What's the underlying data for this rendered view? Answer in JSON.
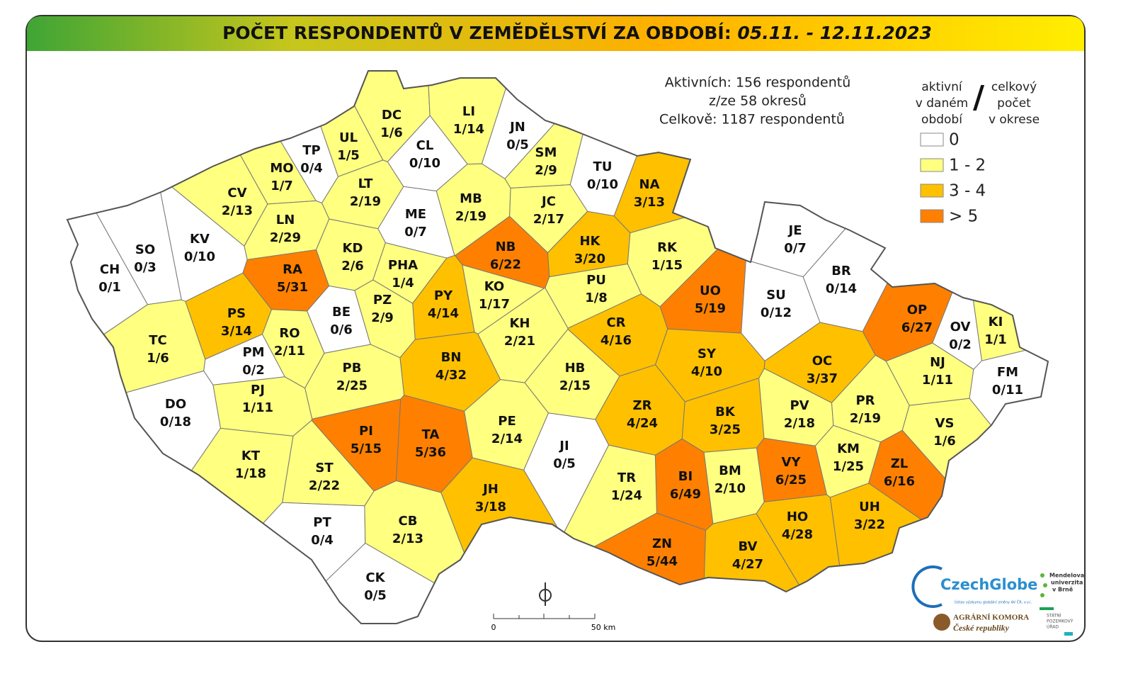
{
  "header": {
    "title": "POČET RESPONDENTŮ V ZEMĚDĚLSTVÍ ZA OBDOBÍ:",
    "period": "05.11. - 12.11.2023"
  },
  "summary": [
    "Aktivních: 156 respondentů",
    "z/ze 58 okresů",
    "Celkově: 1187 respondentů"
  ],
  "legend": {
    "active_label": [
      "aktivní",
      "v daném",
      "období"
    ],
    "separator": "/",
    "total_label": [
      "celkový",
      "počet",
      "v okrese"
    ],
    "items": [
      {
        "label": "0",
        "color": "#ffffff"
      },
      {
        "label": "1 - 2",
        "color": "#ffff80"
      },
      {
        "label": "3 - 4",
        "color": "#ffc000"
      },
      {
        "label": "> 5",
        "color": "#ff8000"
      }
    ]
  },
  "districts": [
    {
      "code": "CH",
      "ratio": "0/1",
      "color": "#ffffff"
    },
    {
      "code": "SO",
      "ratio": "0/3",
      "color": "#ffffff"
    },
    {
      "code": "KV",
      "ratio": "0/10",
      "color": "#ffffff"
    },
    {
      "code": "CV",
      "ratio": "2/13",
      "color": "#ffff80"
    },
    {
      "code": "MO",
      "ratio": "1/7",
      "color": "#ffff80"
    },
    {
      "code": "TP",
      "ratio": "0/4",
      "color": "#ffffff"
    },
    {
      "code": "UL",
      "ratio": "1/5",
      "color": "#ffff80"
    },
    {
      "code": "DC",
      "ratio": "1/6",
      "color": "#ffff80"
    },
    {
      "code": "LI",
      "ratio": "1/14",
      "color": "#ffff80"
    },
    {
      "code": "JN",
      "ratio": "0/5",
      "color": "#ffffff"
    },
    {
      "code": "CL",
      "ratio": "0/10",
      "color": "#ffffff"
    },
    {
      "code": "SM",
      "ratio": "2/9",
      "color": "#ffff80"
    },
    {
      "code": "TU",
      "ratio": "0/10",
      "color": "#ffffff"
    },
    {
      "code": "NA",
      "ratio": "3/13",
      "color": "#ffc000"
    },
    {
      "code": "LT",
      "ratio": "2/19",
      "color": "#ffff80"
    },
    {
      "code": "LN",
      "ratio": "2/29",
      "color": "#ffff80"
    },
    {
      "code": "ME",
      "ratio": "0/7",
      "color": "#ffffff"
    },
    {
      "code": "MB",
      "ratio": "2/19",
      "color": "#ffff80"
    },
    {
      "code": "JC",
      "ratio": "2/17",
      "color": "#ffff80"
    },
    {
      "code": "NB",
      "ratio": "6/22",
      "color": "#ff8000"
    },
    {
      "code": "HK",
      "ratio": "3/20",
      "color": "#ffc000"
    },
    {
      "code": "RK",
      "ratio": "1/15",
      "color": "#ffff80"
    },
    {
      "code": "KD",
      "ratio": "2/6",
      "color": "#ffff80"
    },
    {
      "code": "RA",
      "ratio": "5/31",
      "color": "#ff8000"
    },
    {
      "code": "PHA",
      "ratio": "1/4",
      "color": "#ffff80"
    },
    {
      "code": "PY",
      "ratio": "4/14",
      "color": "#ffc000"
    },
    {
      "code": "KO",
      "ratio": "1/17",
      "color": "#ffff80"
    },
    {
      "code": "PU",
      "ratio": "1/8",
      "color": "#ffff80"
    },
    {
      "code": "JE",
      "ratio": "0/7",
      "color": "#ffffff"
    },
    {
      "code": "BR",
      "ratio": "0/14",
      "color": "#ffffff"
    },
    {
      "code": "UO",
      "ratio": "5/19",
      "color": "#ff8000"
    },
    {
      "code": "SU",
      "ratio": "0/12",
      "color": "#ffffff"
    },
    {
      "code": "OP",
      "ratio": "6/27",
      "color": "#ff8000"
    },
    {
      "code": "KI",
      "ratio": "1/1",
      "color": "#ffff80"
    },
    {
      "code": "OV",
      "ratio": "0/2",
      "color": "#ffffff"
    },
    {
      "code": "PS",
      "ratio": "3/14",
      "color": "#ffc000"
    },
    {
      "code": "BE",
      "ratio": "0/6",
      "color": "#ffffff"
    },
    {
      "code": "PZ",
      "ratio": "2/9",
      "color": "#ffff80"
    },
    {
      "code": "RO",
      "ratio": "2/11",
      "color": "#ffff80"
    },
    {
      "code": "TC",
      "ratio": "1/6",
      "color": "#ffff80"
    },
    {
      "code": "PM",
      "ratio": "0/2",
      "color": "#ffffff"
    },
    {
      "code": "KH",
      "ratio": "2/21",
      "color": "#ffff80"
    },
    {
      "code": "CR",
      "ratio": "4/16",
      "color": "#ffc000"
    },
    {
      "code": "SY",
      "ratio": "4/10",
      "color": "#ffc000"
    },
    {
      "code": "OC",
      "ratio": "3/37",
      "color": "#ffc000"
    },
    {
      "code": "NJ",
      "ratio": "1/11",
      "color": "#ffff80"
    },
    {
      "code": "FM",
      "ratio": "0/11",
      "color": "#ffffff"
    },
    {
      "code": "BN",
      "ratio": "4/32",
      "color": "#ffc000"
    },
    {
      "code": "PB",
      "ratio": "2/25",
      "color": "#ffff80"
    },
    {
      "code": "HB",
      "ratio": "2/15",
      "color": "#ffff80"
    },
    {
      "code": "PJ",
      "ratio": "1/11",
      "color": "#ffff80"
    },
    {
      "code": "DO",
      "ratio": "0/18",
      "color": "#ffffff"
    },
    {
      "code": "ZR",
      "ratio": "4/24",
      "color": "#ffc000"
    },
    {
      "code": "BK",
      "ratio": "3/25",
      "color": "#ffc000"
    },
    {
      "code": "PV",
      "ratio": "2/18",
      "color": "#ffff80"
    },
    {
      "code": "PR",
      "ratio": "2/19",
      "color": "#ffff80"
    },
    {
      "code": "VS",
      "ratio": "1/6",
      "color": "#ffff80"
    },
    {
      "code": "PI",
      "ratio": "5/15",
      "color": "#ff8000"
    },
    {
      "code": "TA",
      "ratio": "5/36",
      "color": "#ff8000"
    },
    {
      "code": "PE",
      "ratio": "2/14",
      "color": "#ffff80"
    },
    {
      "code": "JI",
      "ratio": "0/5",
      "color": "#ffffff"
    },
    {
      "code": "KM",
      "ratio": "1/25",
      "color": "#ffff80"
    },
    {
      "code": "KT",
      "ratio": "1/18",
      "color": "#ffff80"
    },
    {
      "code": "ST",
      "ratio": "2/22",
      "color": "#ffff80"
    },
    {
      "code": "BI",
      "ratio": "6/49",
      "color": "#ff8000"
    },
    {
      "code": "BM",
      "ratio": "2/10",
      "color": "#ffff80"
    },
    {
      "code": "VY",
      "ratio": "6/25",
      "color": "#ff8000"
    },
    {
      "code": "ZL",
      "ratio": "6/16",
      "color": "#ff8000"
    },
    {
      "code": "TR",
      "ratio": "1/24",
      "color": "#ffff80"
    },
    {
      "code": "JH",
      "ratio": "3/18",
      "color": "#ffc000"
    },
    {
      "code": "HO",
      "ratio": "4/28",
      "color": "#ffc000"
    },
    {
      "code": "UH",
      "ratio": "3/22",
      "color": "#ffc000"
    },
    {
      "code": "PT",
      "ratio": "0/4",
      "color": "#ffffff"
    },
    {
      "code": "CB",
      "ratio": "2/13",
      "color": "#ffff80"
    },
    {
      "code": "ZN",
      "ratio": "5/44",
      "color": "#ff8000"
    },
    {
      "code": "BV",
      "ratio": "4/27",
      "color": "#ffc000"
    },
    {
      "code": "CK",
      "ratio": "0/5",
      "color": "#ffffff"
    }
  ],
  "scale": {
    "start": "0",
    "end": "50 km"
  },
  "logos": {
    "czechglobe": "CzechGlobe",
    "czechglobe_sub": "Ústav výzkumu globální změny AV ČR, v.v.i.",
    "mendelu": [
      "Mendelova",
      "univerzita",
      "v Brně"
    ],
    "agrarni": [
      "AGRÁRNÍ KOMORA",
      "České republiky"
    ],
    "spu": [
      "STÁTNÍ",
      "POZEMKOVÝ",
      "ÚŘAD"
    ]
  }
}
